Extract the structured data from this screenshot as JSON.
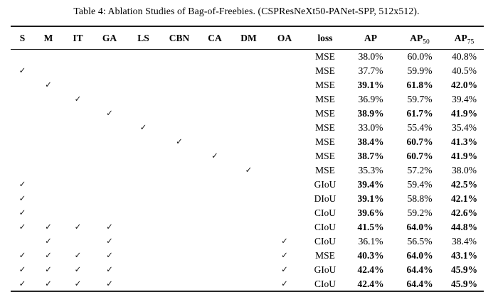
{
  "title": "Table 4: Ablation Studies of Bag-of-Freebies. (CSPResNeXt50-PANet-SPP, 512x512).",
  "check_glyph": "✓",
  "table": {
    "columns": [
      {
        "key": "S",
        "label": "S",
        "type": "check"
      },
      {
        "key": "M",
        "label": "M",
        "type": "check"
      },
      {
        "key": "IT",
        "label": "IT",
        "type": "check"
      },
      {
        "key": "GA",
        "label": "GA",
        "type": "check"
      },
      {
        "key": "LS",
        "label": "LS",
        "type": "check"
      },
      {
        "key": "CBN",
        "label": "CBN",
        "type": "check"
      },
      {
        "key": "CA",
        "label": "CA",
        "type": "check"
      },
      {
        "key": "DM",
        "label": "DM",
        "type": "check"
      },
      {
        "key": "OA",
        "label": "OA",
        "type": "check"
      },
      {
        "key": "loss",
        "label": "loss",
        "type": "text"
      },
      {
        "key": "ap",
        "label": "AP",
        "type": "text"
      },
      {
        "key": "ap50",
        "label": "AP",
        "sub": "50",
        "type": "text"
      },
      {
        "key": "ap75",
        "label": "AP",
        "sub": "75",
        "type": "text"
      }
    ],
    "rows": [
      {
        "checks": [],
        "loss": "MSE",
        "ap": "38.0%",
        "ap50": "60.0%",
        "ap75": "40.8%",
        "bold": []
      },
      {
        "checks": [
          "S"
        ],
        "loss": "MSE",
        "ap": "37.7%",
        "ap50": "59.9%",
        "ap75": "40.5%",
        "bold": []
      },
      {
        "checks": [
          "M"
        ],
        "loss": "MSE",
        "ap": "39.1%",
        "ap50": "61.8%",
        "ap75": "42.0%",
        "bold": [
          "ap",
          "ap50",
          "ap75"
        ]
      },
      {
        "checks": [
          "IT"
        ],
        "loss": "MSE",
        "ap": "36.9%",
        "ap50": "59.7%",
        "ap75": "39.4%",
        "bold": []
      },
      {
        "checks": [
          "GA"
        ],
        "loss": "MSE",
        "ap": "38.9%",
        "ap50": "61.7%",
        "ap75": "41.9%",
        "bold": [
          "ap",
          "ap50",
          "ap75"
        ]
      },
      {
        "checks": [
          "LS"
        ],
        "loss": "MSE",
        "ap": "33.0%",
        "ap50": "55.4%",
        "ap75": "35.4%",
        "bold": []
      },
      {
        "checks": [
          "CBN"
        ],
        "loss": "MSE",
        "ap": "38.4%",
        "ap50": "60.7%",
        "ap75": "41.3%",
        "bold": [
          "ap",
          "ap50",
          "ap75"
        ]
      },
      {
        "checks": [
          "CA"
        ],
        "loss": "MSE",
        "ap": "38.7%",
        "ap50": "60.7%",
        "ap75": "41.9%",
        "bold": [
          "ap",
          "ap50",
          "ap75"
        ]
      },
      {
        "checks": [
          "DM"
        ],
        "loss": "MSE",
        "ap": "35.3%",
        "ap50": "57.2%",
        "ap75": "38.0%",
        "bold": []
      },
      {
        "checks": [
          "S"
        ],
        "loss": "GIoU",
        "ap": "39.4%",
        "ap50": "59.4%",
        "ap75": "42.5%",
        "bold": [
          "ap",
          "ap75"
        ]
      },
      {
        "checks": [
          "S"
        ],
        "loss": "DIoU",
        "ap": "39.1%",
        "ap50": "58.8%",
        "ap75": "42.1%",
        "bold": [
          "ap",
          "ap75"
        ]
      },
      {
        "checks": [
          "S"
        ],
        "loss": "CIoU",
        "ap": "39.6%",
        "ap50": "59.2%",
        "ap75": "42.6%",
        "bold": [
          "ap",
          "ap75"
        ]
      },
      {
        "checks": [
          "S",
          "M",
          "IT",
          "GA"
        ],
        "loss": "CIoU",
        "ap": "41.5%",
        "ap50": "64.0%",
        "ap75": "44.8%",
        "bold": [
          "ap",
          "ap50",
          "ap75"
        ]
      },
      {
        "checks": [
          "M",
          "GA",
          "OA"
        ],
        "loss": "CIoU",
        "ap": "36.1%",
        "ap50": "56.5%",
        "ap75": "38.4%",
        "bold": []
      },
      {
        "checks": [
          "S",
          "M",
          "IT",
          "GA",
          "OA"
        ],
        "loss": "MSE",
        "ap": "40.3%",
        "ap50": "64.0%",
        "ap75": "43.1%",
        "bold": [
          "ap",
          "ap50",
          "ap75"
        ]
      },
      {
        "checks": [
          "S",
          "M",
          "IT",
          "GA",
          "OA"
        ],
        "loss": "GIoU",
        "ap": "42.4%",
        "ap50": "64.4%",
        "ap75": "45.9%",
        "bold": [
          "ap",
          "ap50",
          "ap75"
        ]
      },
      {
        "checks": [
          "S",
          "M",
          "IT",
          "GA",
          "OA"
        ],
        "loss": "CIoU",
        "ap": "42.4%",
        "ap50": "64.4%",
        "ap75": "45.9%",
        "bold": [
          "ap",
          "ap50",
          "ap75"
        ]
      }
    ]
  }
}
